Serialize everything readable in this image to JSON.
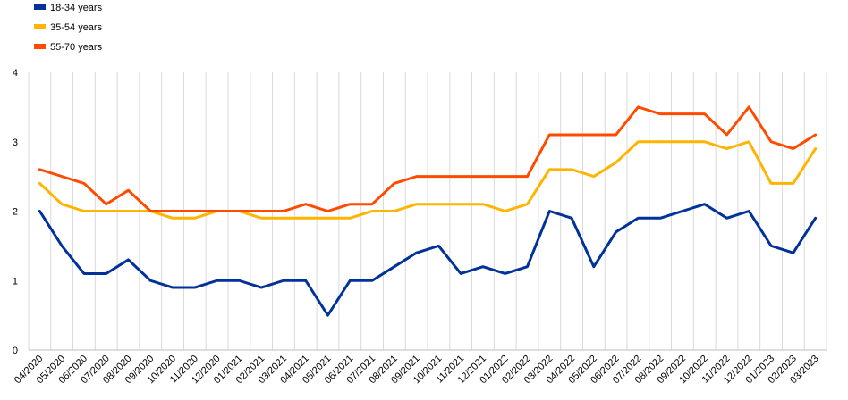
{
  "chart_data": {
    "type": "line",
    "title": "",
    "xlabel": "",
    "ylabel": "",
    "ylim": [
      0,
      4
    ],
    "yticks": [
      0,
      1,
      2,
      3,
      4
    ],
    "grid": "vertical",
    "legend_position": "top-left",
    "categories": [
      "04/2020",
      "05/2020",
      "06/2020",
      "07/2020",
      "08/2020",
      "09/2020",
      "10/2020",
      "11/2020",
      "12/2020",
      "01/2021",
      "02/2021",
      "03/2021",
      "04/2021",
      "05/2021",
      "06/2021",
      "07/2021",
      "08/2021",
      "09/2021",
      "10/2021",
      "11/2021",
      "12/2021",
      "01/2022",
      "02/2022",
      "03/2022",
      "04/2022",
      "05/2022",
      "06/2022",
      "07/2022",
      "08/2022",
      "09/2022",
      "10/2022",
      "11/2022",
      "12/2022",
      "01/2023",
      "02/2023",
      "03/2023"
    ],
    "series": [
      {
        "name": "18-34 years",
        "color": "#003299",
        "values": [
          2.0,
          1.5,
          1.1,
          1.1,
          1.3,
          1.0,
          0.9,
          0.9,
          1.0,
          1.0,
          0.9,
          1.0,
          1.0,
          0.5,
          1.0,
          1.0,
          1.2,
          1.4,
          1.5,
          1.1,
          1.2,
          1.1,
          1.2,
          2.0,
          1.9,
          1.2,
          1.7,
          1.9,
          1.9,
          2.0,
          2.1,
          1.9,
          2.0,
          1.5,
          1.4,
          1.9
        ]
      },
      {
        "name": "35-54 years",
        "color": "#FFB400",
        "values": [
          2.4,
          2.1,
          2.0,
          2.0,
          2.0,
          2.0,
          1.9,
          1.9,
          2.0,
          2.0,
          1.9,
          1.9,
          1.9,
          1.9,
          1.9,
          2.0,
          2.0,
          2.1,
          2.1,
          2.1,
          2.1,
          2.0,
          2.1,
          2.6,
          2.6,
          2.5,
          2.7,
          3.0,
          3.0,
          3.0,
          3.0,
          2.9,
          3.0,
          2.4,
          2.4,
          2.9
        ]
      },
      {
        "name": "55-70 years",
        "color": "#FF4B00",
        "values": [
          2.6,
          2.5,
          2.4,
          2.1,
          2.3,
          2.0,
          2.0,
          2.0,
          2.0,
          2.0,
          2.0,
          2.0,
          2.1,
          2.0,
          2.1,
          2.1,
          2.4,
          2.5,
          2.5,
          2.5,
          2.5,
          2.5,
          2.5,
          3.1,
          3.1,
          3.1,
          3.1,
          3.5,
          3.4,
          3.4,
          3.4,
          3.1,
          3.5,
          3.0,
          2.9,
          3.1
        ]
      }
    ]
  }
}
